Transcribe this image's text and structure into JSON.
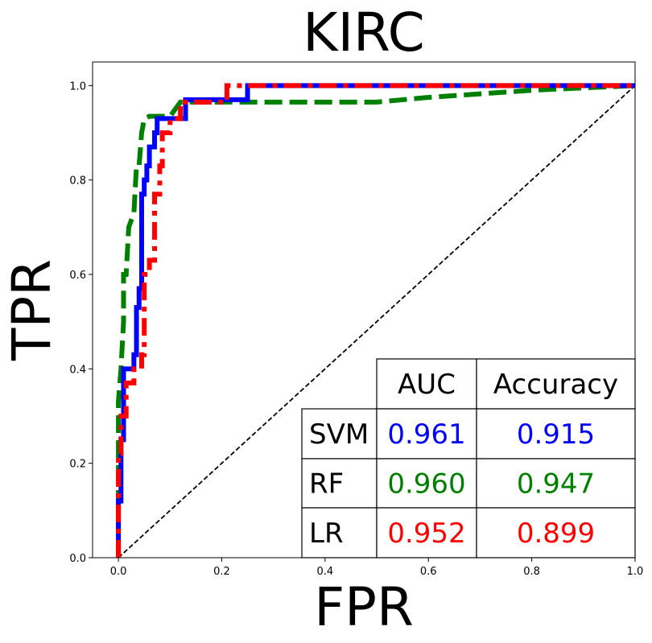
{
  "chart_data": {
    "type": "line",
    "title": "KIRC",
    "xlabel": "FPR",
    "ylabel": "TPR",
    "xlim": [
      -0.05,
      1.0
    ],
    "ylim": [
      0.0,
      1.05
    ],
    "xticks": [
      "0.0",
      "0.2",
      "0.4",
      "0.6",
      "0.8",
      "1.0"
    ],
    "yticks": [
      "0.0",
      "0.2",
      "0.4",
      "0.6",
      "0.8",
      "1.0"
    ],
    "grid": false,
    "series": [
      {
        "name": "SVM",
        "color": "#0000ff",
        "style": "solid",
        "points": [
          [
            0,
            0
          ],
          [
            0,
            0.12
          ],
          [
            0.005,
            0.12
          ],
          [
            0.005,
            0.25
          ],
          [
            0.01,
            0.25
          ],
          [
            0.01,
            0.4
          ],
          [
            0.02,
            0.4
          ],
          [
            0.03,
            0.4
          ],
          [
            0.03,
            0.43
          ],
          [
            0.035,
            0.43
          ],
          [
            0.035,
            0.53
          ],
          [
            0.04,
            0.53
          ],
          [
            0.04,
            0.57
          ],
          [
            0.045,
            0.57
          ],
          [
            0.045,
            0.77
          ],
          [
            0.05,
            0.77
          ],
          [
            0.05,
            0.8
          ],
          [
            0.055,
            0.8
          ],
          [
            0.055,
            0.83
          ],
          [
            0.06,
            0.83
          ],
          [
            0.06,
            0.87
          ],
          [
            0.07,
            0.87
          ],
          [
            0.07,
            0.9
          ],
          [
            0.075,
            0.9
          ],
          [
            0.075,
            0.93
          ],
          [
            0.13,
            0.93
          ],
          [
            0.13,
            0.97
          ],
          [
            0.25,
            0.97
          ],
          [
            0.25,
            1.0
          ],
          [
            1.0,
            1.0
          ]
        ]
      },
      {
        "name": "RF",
        "color": "#008000",
        "style": "dashed",
        "points": [
          [
            0,
            0
          ],
          [
            0,
            0.2
          ],
          [
            0,
            0.33
          ],
          [
            0.005,
            0.4
          ],
          [
            0.01,
            0.5
          ],
          [
            0.01,
            0.6
          ],
          [
            0.015,
            0.6
          ],
          [
            0.02,
            0.7
          ],
          [
            0.03,
            0.73
          ],
          [
            0.035,
            0.83
          ],
          [
            0.04,
            0.83
          ],
          [
            0.045,
            0.9
          ],
          [
            0.05,
            0.93
          ],
          [
            0.06,
            0.935
          ],
          [
            0.1,
            0.935
          ],
          [
            0.12,
            0.965
          ],
          [
            0.5,
            0.965
          ],
          [
            0.6,
            0.975
          ],
          [
            0.8,
            0.99
          ],
          [
            1.0,
            1.0
          ]
        ]
      },
      {
        "name": "LR",
        "color": "#ff0000",
        "style": "dashdot",
        "points": [
          [
            0,
            0
          ],
          [
            0,
            0.1
          ],
          [
            0,
            0.22
          ],
          [
            0.005,
            0.22
          ],
          [
            0.005,
            0.3
          ],
          [
            0.015,
            0.3
          ],
          [
            0.015,
            0.37
          ],
          [
            0.03,
            0.37
          ],
          [
            0.03,
            0.4
          ],
          [
            0.045,
            0.4
          ],
          [
            0.045,
            0.43
          ],
          [
            0.05,
            0.43
          ],
          [
            0.05,
            0.6
          ],
          [
            0.06,
            0.6
          ],
          [
            0.06,
            0.63
          ],
          [
            0.07,
            0.63
          ],
          [
            0.07,
            0.77
          ],
          [
            0.08,
            0.77
          ],
          [
            0.08,
            0.83
          ],
          [
            0.085,
            0.83
          ],
          [
            0.085,
            0.9
          ],
          [
            0.1,
            0.9
          ],
          [
            0.1,
            0.93
          ],
          [
            0.12,
            0.93
          ],
          [
            0.12,
            0.965
          ],
          [
            0.21,
            0.965
          ],
          [
            0.21,
            1.0
          ],
          [
            1.0,
            1.0
          ]
        ]
      },
      {
        "name": "chance",
        "color": "#000000",
        "style": "dotted",
        "points": [
          [
            0,
            0
          ],
          [
            1,
            1
          ]
        ]
      }
    ],
    "table": {
      "headers": [
        "",
        "AUC",
        "Accuracy"
      ],
      "rows": [
        {
          "label": "SVM",
          "auc": "0.961",
          "accuracy": "0.915",
          "color": "#0000ff"
        },
        {
          "label": "RF",
          "auc": "0.960",
          "accuracy": "0.947",
          "color": "#008000"
        },
        {
          "label": "LR",
          "auc": "0.952",
          "accuracy": "0.899",
          "color": "#ff0000"
        }
      ]
    }
  }
}
